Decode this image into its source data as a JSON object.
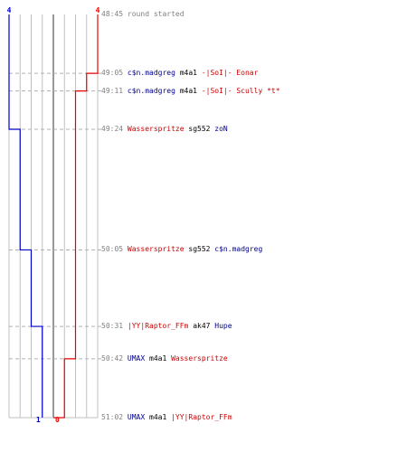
{
  "colors": {
    "blue": "#0000cc",
    "red": "#ee0000",
    "grid": "#c0c0c0",
    "center": "#777777",
    "dash": "#b0b0b0",
    "time": "#808080"
  },
  "score": {
    "blue_start": "4",
    "red_start": "4",
    "blue_end": "1",
    "red_end": "0"
  },
  "events": [
    {
      "time": "48:45",
      "kind": "info",
      "text": "round started",
      "step": 0
    },
    {
      "time": "49:05",
      "kind": "kill",
      "killer": "c$n.madgreg",
      "killer_team": "blue",
      "weapon": "m4a1",
      "victim": "-|SoI|- Eonar",
      "victim_team": "red",
      "step": 20
    },
    {
      "time": "49:11",
      "kind": "kill",
      "killer": "c$n.madgreg",
      "killer_team": "blue",
      "weapon": "m4a1",
      "victim": "-|SoI|- Scully *t*",
      "victim_team": "red",
      "step": 26
    },
    {
      "time": "49:24",
      "kind": "kill",
      "killer": "Wasserspritze",
      "killer_team": "red",
      "weapon": "sg552",
      "victim": "zoN",
      "victim_team": "blue",
      "step": 39
    },
    {
      "time": "50:05",
      "kind": "kill",
      "killer": "Wasserspritze",
      "killer_team": "red",
      "weapon": "sg552",
      "victim": "c$n.madgreg",
      "victim_team": "blue",
      "step": 80
    },
    {
      "time": "50:31",
      "kind": "kill",
      "killer": "|YY|Raptor_FFm",
      "killer_team": "red",
      "weapon": "ak47",
      "victim": "Hupe",
      "victim_team": "blue",
      "step": 106
    },
    {
      "time": "50:42",
      "kind": "kill",
      "killer": "UMAX",
      "killer_team": "blue",
      "weapon": "m4a1",
      "victim": "Wasserspritze",
      "victim_team": "red",
      "step": 117
    },
    {
      "time": "51:02",
      "kind": "kill",
      "killer": "UMAX",
      "killer_team": "blue",
      "weapon": "m4a1",
      "victim": "|YY|Raptor_FFm",
      "victim_team": "red",
      "step": 137
    }
  ]
}
